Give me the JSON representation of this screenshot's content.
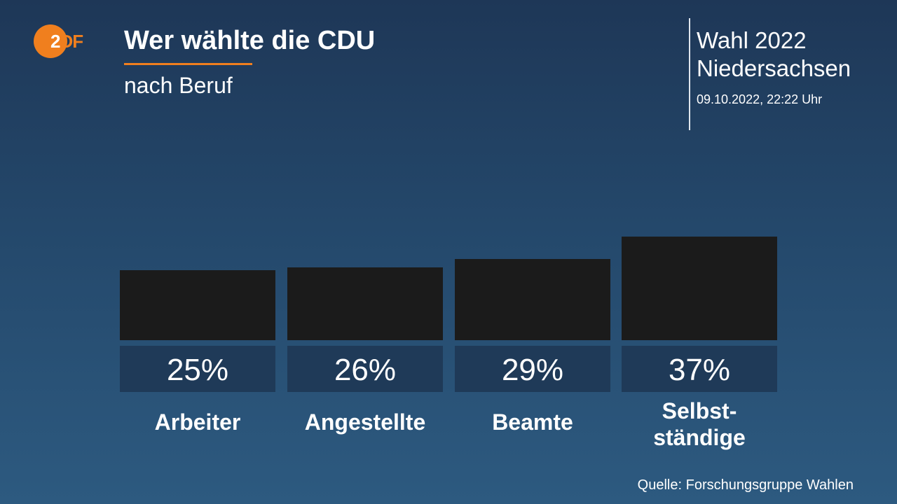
{
  "header": {
    "logo": "ZDF",
    "title": "Wer wählte die CDU",
    "subtitle": "nach Beruf",
    "election": "Wahl 2022 Niedersachsen",
    "election_line1": "Wahl 2022",
    "election_line2": "Niedersachsen",
    "datetime": "09.10.2022, 22:22 Uhr"
  },
  "colors": {
    "accent": "#f07f1e",
    "bar": "#1b1b1b",
    "label_box": "#1f3a58"
  },
  "source": "Quelle: Forschungsgruppe Wahlen",
  "chart_data": {
    "type": "bar",
    "title": "Wer wählte die CDU",
    "subtitle": "nach Beruf",
    "categories": [
      "Arbeiter",
      "Angestellte",
      "Beamte",
      "Selbst-ständige"
    ],
    "category_lines": [
      [
        "Arbeiter"
      ],
      [
        "Angestellte"
      ],
      [
        "Beamte"
      ],
      [
        "Selbst-",
        "ständige"
      ]
    ],
    "values": [
      25,
      26,
      29,
      37
    ],
    "value_labels": [
      "25%",
      "26%",
      "29%",
      "37%"
    ],
    "unit": "%",
    "grid": false,
    "legend": "none"
  }
}
